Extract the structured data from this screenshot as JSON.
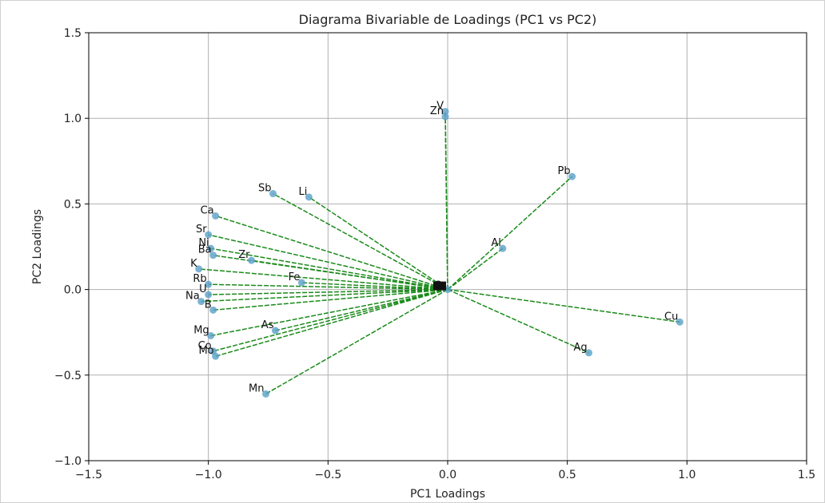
{
  "chart_data": {
    "type": "scatter",
    "title": "Diagrama Bivariable de Loadings (PC1 vs PC2)",
    "xlabel": "PC1 Loadings",
    "ylabel": "PC2 Loadings",
    "xlim": [
      -1.5,
      1.5
    ],
    "ylim": [
      -1.0,
      1.5
    ],
    "xticks": [
      -1.5,
      -1.0,
      -0.5,
      0.0,
      0.5,
      1.0,
      1.5
    ],
    "xtick_labels": [
      "−1.5",
      "−1.0",
      "−0.5",
      "0.0",
      "0.5",
      "1.0",
      "1.5"
    ],
    "yticks": [
      -1.0,
      -0.5,
      0.0,
      0.5,
      1.0,
      1.5
    ],
    "ytick_labels": [
      "−1.0",
      "−0.5",
      "0.0",
      "0.5",
      "1.0",
      "1.5"
    ],
    "grid": true,
    "vectors_from_origin": true,
    "points": [
      {
        "label": "V",
        "x": -0.01,
        "y": 1.04
      },
      {
        "label": "Zn",
        "x": -0.01,
        "y": 1.01
      },
      {
        "label": "Pb",
        "x": 0.52,
        "y": 0.66
      },
      {
        "label": "Al",
        "x": 0.23,
        "y": 0.24
      },
      {
        "label": "Cu",
        "x": 0.97,
        "y": -0.19
      },
      {
        "label": "Ag",
        "x": 0.59,
        "y": -0.37
      },
      {
        "label": "Sb",
        "x": -0.73,
        "y": 0.56
      },
      {
        "label": "Li",
        "x": -0.58,
        "y": 0.54
      },
      {
        "label": "Ca",
        "x": -0.97,
        "y": 0.43
      },
      {
        "label": "Sr",
        "x": -1.0,
        "y": 0.32
      },
      {
        "label": "Ni",
        "x": -0.99,
        "y": 0.24
      },
      {
        "label": "Ba",
        "x": -0.98,
        "y": 0.2
      },
      {
        "label": "Zr",
        "x": -0.82,
        "y": 0.17
      },
      {
        "label": "K",
        "x": -1.04,
        "y": 0.12
      },
      {
        "label": "Fe",
        "x": -0.61,
        "y": 0.04
      },
      {
        "label": "Rb",
        "x": -1.0,
        "y": 0.03
      },
      {
        "label": "U",
        "x": -1.0,
        "y": -0.03
      },
      {
        "label": "Na",
        "x": -1.03,
        "y": -0.07
      },
      {
        "label": "B",
        "x": -0.98,
        "y": -0.12
      },
      {
        "label": "Mg",
        "x": -0.99,
        "y": -0.27
      },
      {
        "label": "As",
        "x": -0.72,
        "y": -0.24
      },
      {
        "label": "Co",
        "x": -0.98,
        "y": -0.36
      },
      {
        "label": "Mo",
        "x": -0.97,
        "y": -0.39
      },
      {
        "label": "Mn",
        "x": -0.76,
        "y": -0.61
      }
    ],
    "origin_label": "Cr"
  }
}
